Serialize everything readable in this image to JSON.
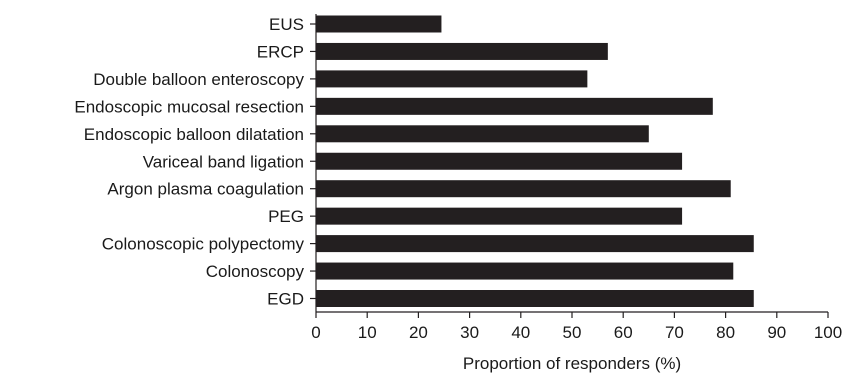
{
  "chart_data": {
    "type": "bar",
    "orientation": "horizontal",
    "categories": [
      "EUS",
      "ERCP",
      "Double balloon enteroscopy",
      "Endoscopic mucosal resection",
      "Endoscopic balloon dilatation",
      "Variceal band ligation",
      "Argon plasma coagulation",
      "PEG",
      "Colonoscopic polypectomy",
      "Colonoscopy",
      "EGD"
    ],
    "values": [
      24.5,
      57,
      53,
      77.5,
      65,
      71.5,
      81,
      71.5,
      85.5,
      81.5,
      85.5
    ],
    "xlabel": "Proportion of responders (%)",
    "ylabel": "",
    "title": "",
    "xlim": [
      0,
      100
    ],
    "xticks": [
      0,
      10,
      20,
      30,
      40,
      50,
      60,
      70,
      80,
      90,
      100
    ],
    "bar_color": "#231f20",
    "grid": false,
    "legend": "none"
  }
}
